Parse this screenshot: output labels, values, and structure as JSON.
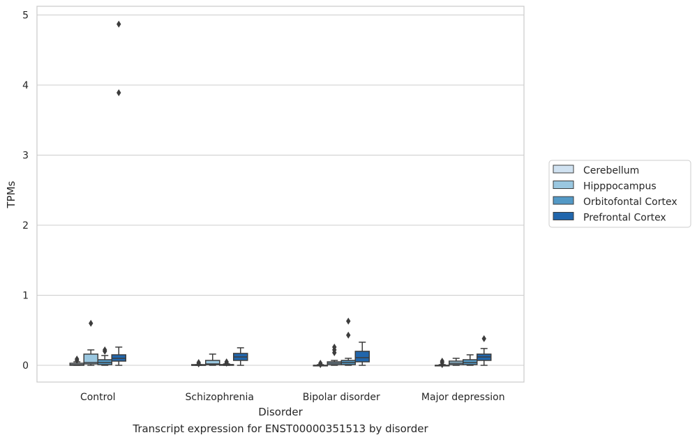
{
  "caption": "Transcript expression for ENST00000351513 by disorder",
  "chart_data": {
    "type": "box",
    "xlabel": "Disorder",
    "ylabel": "TPMs",
    "ylim": [
      -0.24,
      5.12
    ],
    "yticks": [
      0,
      1,
      2,
      3,
      4,
      5
    ],
    "grid": true,
    "legend_position": "right",
    "categories": [
      "Control",
      "Schizophrenia",
      "Bipolar disorder",
      "Major depression"
    ],
    "series": [
      {
        "name": "Cerebellum",
        "color": "#d0e2f1",
        "boxes": [
          {
            "whislo": 0.0,
            "q1": 0.0,
            "med": 0.01,
            "q3": 0.03,
            "whishi": 0.05,
            "fliers": [
              0.07,
              0.09
            ]
          },
          {
            "whislo": 0.0,
            "q1": 0.0,
            "med": 0.0,
            "q3": 0.01,
            "whishi": 0.01,
            "fliers": [
              0.02,
              0.04
            ]
          },
          {
            "whislo": 0.0,
            "q1": 0.0,
            "med": 0.0,
            "q3": 0.0,
            "whishi": 0.01,
            "fliers": [
              0.01,
              0.03
            ]
          },
          {
            "whislo": 0.0,
            "q1": 0.0,
            "med": 0.0,
            "q3": 0.0,
            "whishi": 0.01,
            "fliers": [
              0.01,
              0.04,
              0.06
            ]
          }
        ]
      },
      {
        "name": "Hipppocampus",
        "color": "#9ac7e0",
        "boxes": [
          {
            "whislo": 0.0,
            "q1": 0.02,
            "med": 0.04,
            "q3": 0.16,
            "whishi": 0.22,
            "fliers": [
              0.6
            ]
          },
          {
            "whislo": 0.0,
            "q1": 0.01,
            "med": 0.02,
            "q3": 0.07,
            "whishi": 0.16,
            "fliers": []
          },
          {
            "whislo": 0.0,
            "q1": 0.01,
            "med": 0.03,
            "q3": 0.05,
            "whishi": 0.07,
            "fliers": [
              0.18,
              0.22,
              0.26
            ]
          },
          {
            "whislo": 0.0,
            "q1": 0.01,
            "med": 0.03,
            "q3": 0.06,
            "whishi": 0.1,
            "fliers": []
          }
        ]
      },
      {
        "name": "Orbitofontal Cortex",
        "color": "#5399c6",
        "boxes": [
          {
            "whislo": 0.0,
            "q1": 0.01,
            "med": 0.04,
            "q3": 0.08,
            "whishi": 0.14,
            "fliers": [
              0.2,
              0.22
            ]
          },
          {
            "whislo": 0.0,
            "q1": 0.0,
            "med": 0.01,
            "q3": 0.01,
            "whishi": 0.02,
            "fliers": [
              0.03,
              0.05
            ]
          },
          {
            "whislo": 0.0,
            "q1": 0.01,
            "med": 0.04,
            "q3": 0.07,
            "whishi": 0.1,
            "fliers": [
              0.43,
              0.63
            ]
          },
          {
            "whislo": 0.0,
            "q1": 0.01,
            "med": 0.04,
            "q3": 0.08,
            "whishi": 0.15,
            "fliers": []
          }
        ]
      },
      {
        "name": "Prefrontal Cortex",
        "color": "#2166ac",
        "boxes": [
          {
            "whislo": 0.0,
            "q1": 0.06,
            "med": 0.1,
            "q3": 0.15,
            "whishi": 0.26,
            "fliers": [
              4.87,
              3.89
            ]
          },
          {
            "whislo": 0.0,
            "q1": 0.07,
            "med": 0.12,
            "q3": 0.17,
            "whishi": 0.25,
            "fliers": []
          },
          {
            "whislo": 0.0,
            "q1": 0.05,
            "med": 0.11,
            "q3": 0.2,
            "whishi": 0.33,
            "fliers": []
          },
          {
            "whislo": 0.0,
            "q1": 0.07,
            "med": 0.12,
            "q3": 0.16,
            "whishi": 0.24,
            "fliers": [
              0.38
            ]
          }
        ]
      }
    ]
  }
}
